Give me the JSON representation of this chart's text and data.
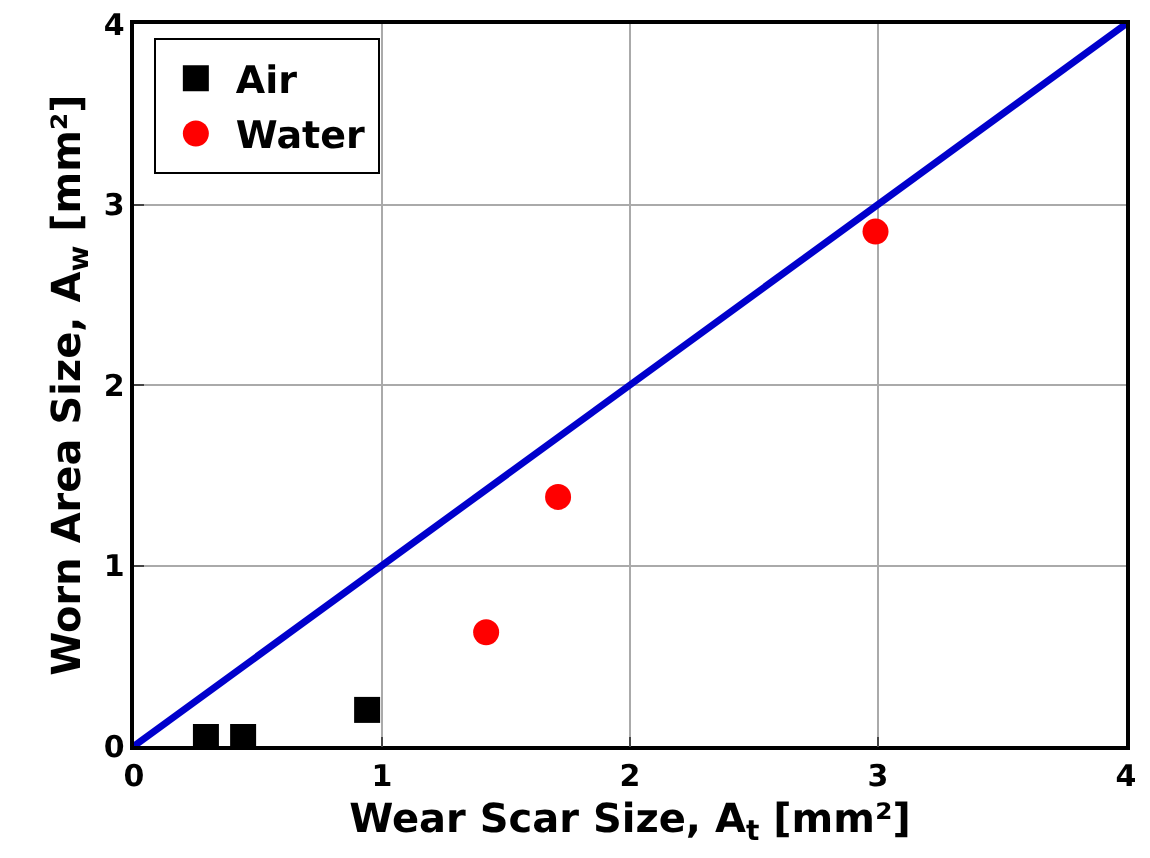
{
  "chart_data": {
    "type": "scatter",
    "xlabel": "Wear Scar Size, A$_{t}$ [mm²]",
    "ylabel": "Worn Area Size, A$_{w}$ [mm²]",
    "xlim": [
      0,
      4
    ],
    "ylim": [
      0,
      4
    ],
    "xticks": [
      0,
      1,
      2,
      3,
      4
    ],
    "yticks": [
      0,
      1,
      2,
      3,
      4
    ],
    "grid": true,
    "legend": "top left",
    "series": [
      {
        "name": "Air",
        "color": "#000000",
        "marker": "square",
        "x": [
          0.29,
          0.44,
          0.94
        ],
        "values": [
          0.05,
          0.05,
          0.2
        ]
      },
      {
        "name": "Water",
        "color": "#ff0000",
        "marker": "circle",
        "x": [
          1.42,
          1.71,
          2.99
        ],
        "values": [
          0.63,
          1.38,
          2.85
        ]
      },
      {
        "type": "line",
        "color": "#0000cc",
        "marker": "none",
        "x": [
          0,
          4
        ],
        "values": [
          0,
          4
        ]
      }
    ]
  }
}
